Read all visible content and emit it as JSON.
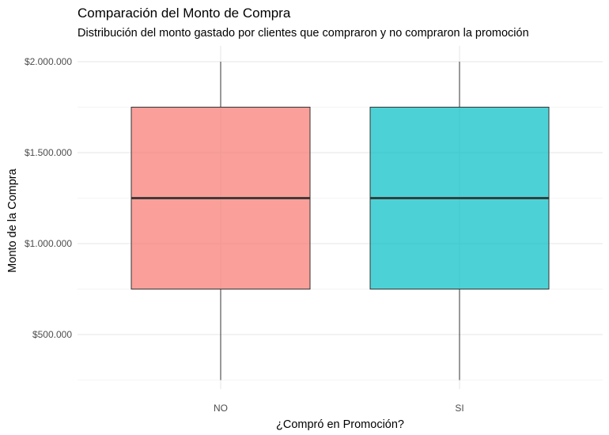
{
  "chart_data": {
    "type": "boxplot",
    "title": "Comparación del Monto de Compra",
    "subtitle": "Distribución del monto gastado por clientes que compraron y no compraron la promoción",
    "xlabel": "¿Compró en Promoción?",
    "ylabel": "Monto de la Compra",
    "categories": [
      "NO",
      "SI"
    ],
    "y_ticks": [
      500000,
      1000000,
      1500000,
      2000000
    ],
    "y_tick_labels": [
      "$500.000",
      "$1.000.000",
      "$1.500.000",
      "$2.000.000"
    ],
    "ylim": [
      250000,
      2000000
    ],
    "grid": true,
    "legend": "none",
    "boxes": [
      {
        "category": "NO",
        "min": 250000,
        "q1": 750000,
        "median": 1250000,
        "q3": 1750000,
        "max": 2000000,
        "color": "#F8766D"
      },
      {
        "category": "SI",
        "min": 250000,
        "q1": 750000,
        "median": 1250000,
        "q3": 1750000,
        "max": 2000000,
        "color": "#00BFC4"
      }
    ]
  }
}
